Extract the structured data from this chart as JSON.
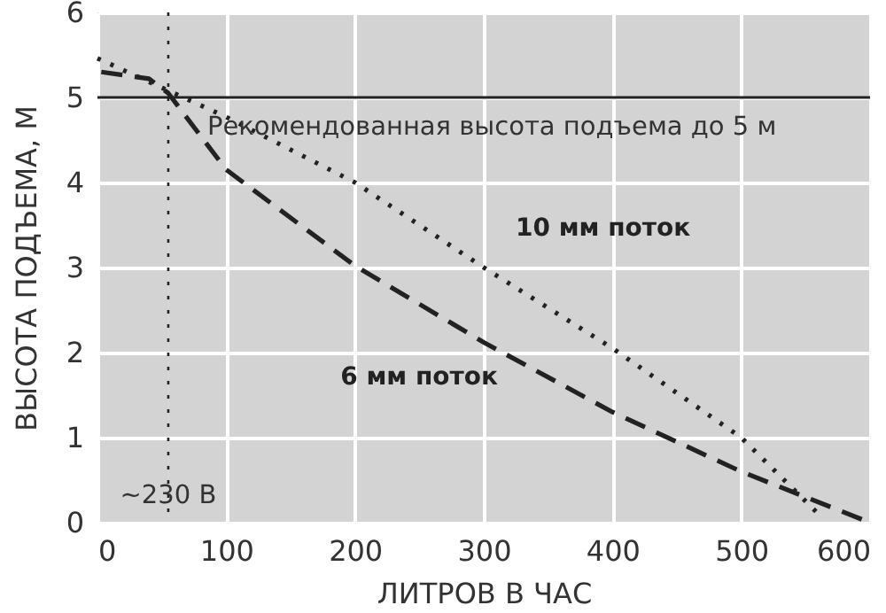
{
  "chart_data": {
    "type": "line",
    "xlabel": "ЛИТРОВ В ЧАС",
    "ylabel": "ВЫСОТА ПОДЪЕМА, М",
    "xlim": [
      0,
      600
    ],
    "xticks": [
      0,
      100,
      200,
      300,
      400,
      500,
      600
    ],
    "ylim": [
      0,
      6
    ],
    "yticks": [
      0,
      1,
      2,
      3,
      4,
      5,
      6
    ],
    "grid": true,
    "series": [
      {
        "name": "10 мм поток",
        "color": "#222222",
        "line_style": "dotted",
        "x": [
          0,
          100,
          200,
          300,
          400,
          500,
          560
        ],
        "values": [
          5.46,
          4.77,
          4.0,
          3.0,
          2.05,
          1.0,
          0.1
        ]
      },
      {
        "name": "6 мм поток",
        "color": "#222222",
        "line_style": "dashed",
        "x": [
          3,
          40,
          55,
          100,
          200,
          300,
          400,
          500,
          600
        ],
        "values": [
          5.3,
          5.22,
          5.05,
          4.15,
          3.02,
          2.12,
          1.3,
          0.6,
          0.0
        ]
      }
    ],
    "ref_lines": [
      {
        "axis": "y",
        "value": 5,
        "label": "Рекомендованная высота подъема до 5 м",
        "color": "#222222",
        "line_style": "solid"
      },
      {
        "axis": "x",
        "value": 55,
        "label": "~230 В",
        "color": "#222222",
        "line_style": "dotted"
      }
    ]
  }
}
